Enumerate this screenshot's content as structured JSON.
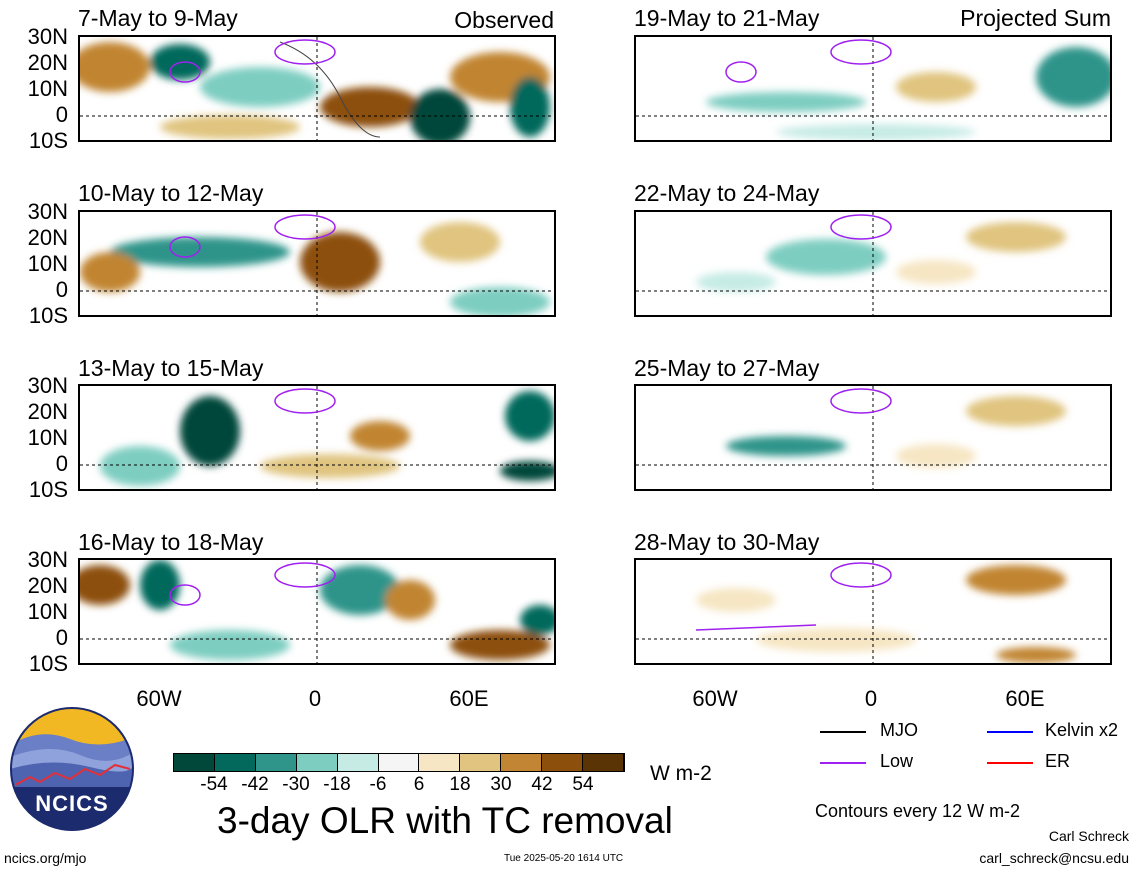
{
  "panels_left": [
    {
      "title": "7-May to 9-May",
      "tag": "Observed"
    },
    {
      "title": "10-May to 12-May",
      "tag": ""
    },
    {
      "title": "13-May to 15-May",
      "tag": ""
    },
    {
      "title": "16-May to 18-May",
      "tag": ""
    }
  ],
  "panels_right": [
    {
      "title": "19-May to 21-May",
      "tag": "Projected Sum"
    },
    {
      "title": "22-May to 24-May",
      "tag": ""
    },
    {
      "title": "25-May to 27-May",
      "tag": ""
    },
    {
      "title": "28-May to 30-May",
      "tag": ""
    }
  ],
  "lat_labels": [
    "30N",
    "20N",
    "10N",
    "0",
    "10S"
  ],
  "lon_labels": [
    "60W",
    "0",
    "60E"
  ],
  "colorbar": {
    "colors": [
      "#01473a",
      "#03695c",
      "#2f948a",
      "#7ecdc1",
      "#c6ebe5",
      "#f5f5f5",
      "#f6e6c3",
      "#e0c47f",
      "#c18533",
      "#8d500c",
      "#5b3405"
    ],
    "labels": [
      "-54",
      "-42",
      "-30",
      "-18",
      "-6",
      "6",
      "18",
      "30",
      "42",
      "54"
    ],
    "units": "W m-2"
  },
  "legend": [
    {
      "label": "MJO",
      "color": "#000000"
    },
    {
      "label": "Kelvin x2",
      "color": "#0000ff"
    },
    {
      "label": "Low",
      "color": "#a020f0"
    },
    {
      "label": "ER",
      "color": "#ff0000"
    }
  ],
  "contours_note": "Contours every 12 W m-2",
  "main_title": "3-day OLR with TC removal",
  "logo_text": "NCICS",
  "site": "ncics.org/mjo",
  "timestamp": "Tue 2025-05-20 1614 UTC",
  "author": "Carl Schreck",
  "email": "carl_schreck@ncsu.edu"
}
